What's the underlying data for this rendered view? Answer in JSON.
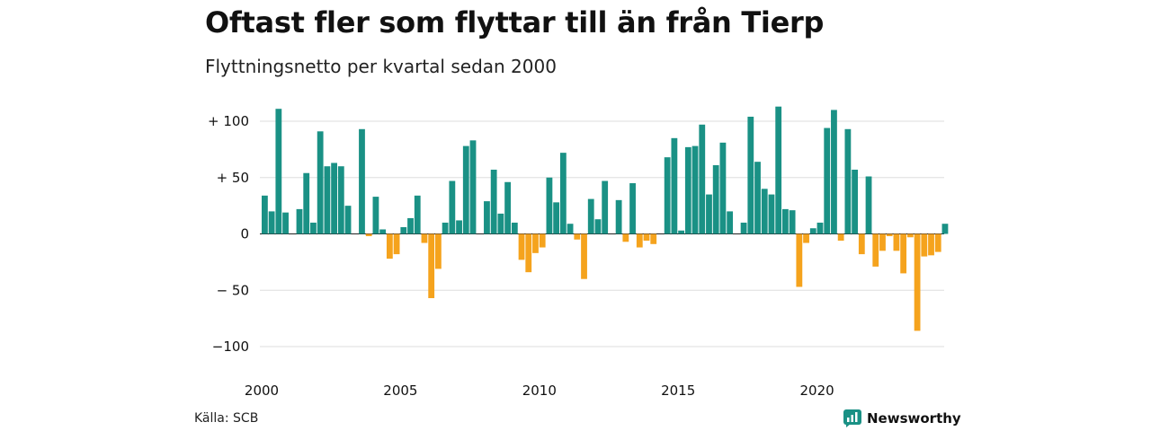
{
  "header": {
    "title": "Oftast fler som flyttar till än från Tierp",
    "subtitle": "Flyttningsnetto per kvartal sedan 2000"
  },
  "footer": {
    "source": "Källa: SCB",
    "brand": "Newsworthy"
  },
  "colors": {
    "positive": "#1a9185",
    "negative": "#f5a31d",
    "grid": "#dddddd",
    "brand": "#1a9185"
  },
  "chart_data": {
    "type": "bar",
    "title": "Oftast fler som flyttar till än från Tierp",
    "subtitle": "Flyttningsnetto per kvartal sedan 2000",
    "x_start": "2000 Q1",
    "x_tick_labels": [
      "2000",
      "2005",
      "2010",
      "2015",
      "2020"
    ],
    "y_tick_labels": [
      "+ 100",
      "+  50",
      "0",
      "− 50",
      "−100"
    ],
    "y_ticks": [
      100,
      50,
      0,
      -50,
      -100
    ],
    "ylim": [
      -100,
      115
    ],
    "grid": true,
    "values": [
      34,
      20,
      111,
      19,
      0,
      22,
      54,
      10,
      91,
      60,
      63,
      60,
      25,
      0,
      93,
      -2,
      33,
      4,
      -22,
      -18,
      6,
      14,
      34,
      -8,
      -57,
      -31,
      10,
      47,
      12,
      78,
      83,
      0,
      29,
      57,
      18,
      46,
      10,
      -23,
      -34,
      -17,
      -12,
      50,
      28,
      72,
      9,
      -5,
      -40,
      31,
      13,
      47,
      0,
      30,
      -7,
      45,
      -12,
      -6,
      -9,
      0,
      68,
      85,
      3,
      77,
      78,
      97,
      35,
      61,
      81,
      20,
      0,
      10,
      104,
      64,
      40,
      35,
      113,
      22,
      21,
      -47,
      -8,
      5,
      10,
      94,
      110,
      -6,
      93,
      57,
      -18,
      51,
      -29,
      -15,
      -2,
      -15,
      -35,
      -3,
      -86,
      -20,
      -19,
      -16,
      9
    ]
  }
}
